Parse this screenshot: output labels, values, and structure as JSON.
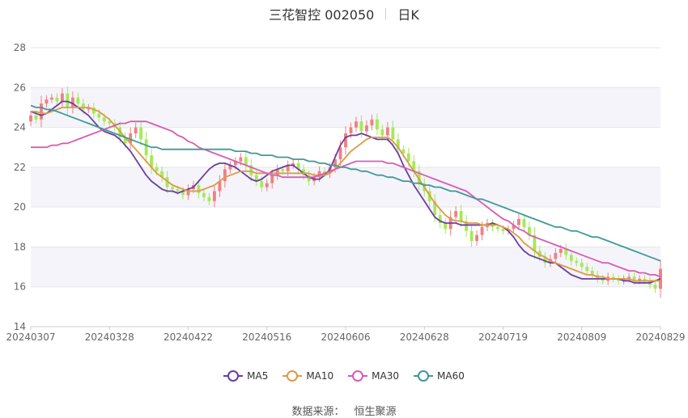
{
  "header": {
    "title": "三花智控 002050",
    "period": "日K"
  },
  "source": {
    "label": "数据来源：",
    "name": "恒生聚源"
  },
  "colors": {
    "up": "#f08080",
    "down": "#a6e85a",
    "MA5": "#6a3fa0",
    "MA10": "#dd9a47",
    "MA30": "#d85db2",
    "MA60": "#3f9a9a",
    "grid": "#e6e6e6",
    "band": "#f4f4fa",
    "axis": "#666666"
  },
  "chart_data": {
    "type": "candlestick",
    "title": "三花智控 002050",
    "ylim": [
      14,
      28
    ],
    "y_ticks": [
      14,
      16,
      18,
      20,
      22,
      24,
      26,
      28
    ],
    "x_ticks": [
      "20240307",
      "20240328",
      "20240422",
      "20240516",
      "20240606",
      "20240628",
      "20240719",
      "20240809",
      "20240829"
    ],
    "x_tick_index": [
      0,
      15,
      30,
      45,
      60,
      75,
      90,
      105,
      120
    ],
    "n_days": 121,
    "grid": true,
    "legend_position": "bottom",
    "close": [
      24.6,
      24.4,
      25.2,
      25.4,
      25.5,
      25.3,
      25.7,
      25.0,
      25.5,
      25.2,
      24.9,
      25.0,
      24.7,
      24.5,
      24.3,
      24.2,
      24.0,
      23.5,
      23.2,
      23.7,
      24.0,
      23.4,
      22.6,
      22.0,
      21.8,
      21.5,
      21.0,
      20.9,
      20.8,
      20.6,
      20.9,
      21.1,
      20.7,
      20.5,
      20.3,
      20.8,
      21.3,
      21.9,
      22.1,
      22.3,
      22.5,
      22.1,
      21.6,
      21.3,
      21.0,
      21.2,
      21.6,
      21.9,
      21.8,
      22.1,
      22.2,
      21.9,
      21.6,
      21.3,
      21.5,
      21.8,
      21.7,
      22.0,
      22.4,
      23.0,
      23.7,
      24.0,
      24.3,
      23.8,
      24.1,
      24.4,
      23.9,
      23.6,
      24.0,
      23.4,
      22.9,
      22.7,
      22.3,
      21.8,
      21.2,
      20.8,
      20.3,
      19.6,
      19.2,
      18.9,
      19.5,
      19.8,
      19.3,
      18.8,
      18.3,
      18.6,
      19.0,
      19.2,
      19.0,
      18.9,
      18.8,
      18.9,
      19.1,
      19.4,
      19.0,
      18.6,
      17.8,
      17.5,
      17.2,
      17.4,
      17.7,
      17.9,
      17.6,
      17.3,
      17.2,
      17.0,
      16.8,
      16.6,
      16.4,
      16.3,
      16.5,
      16.4,
      16.3,
      16.4,
      16.5,
      16.3,
      16.4,
      16.3,
      16.1,
      15.9,
      16.9
    ],
    "series": [
      {
        "name": "MA5",
        "values": [
          24.8,
          24.7,
          24.6,
          24.7,
          24.9,
          25.1,
          25.3,
          25.3,
          25.2,
          25.0,
          24.8,
          24.6,
          24.3,
          24.0,
          23.8,
          23.7,
          23.6,
          23.4,
          23.1,
          22.8,
          22.4,
          22.0,
          21.6,
          21.3,
          21.1,
          20.9,
          20.8,
          20.8,
          20.7,
          20.8,
          20.9,
          21.0,
          21.3,
          21.6,
          21.9,
          22.1,
          22.2,
          22.2,
          22.1,
          22.0,
          21.8,
          21.6,
          21.4,
          21.3,
          21.4,
          21.6,
          21.8,
          21.9,
          22.0,
          22.1,
          22.1,
          21.9,
          21.7,
          21.5,
          21.4,
          21.4,
          21.6,
          21.9,
          22.5,
          23.1,
          23.5,
          23.6,
          23.6,
          23.7,
          23.6,
          23.5,
          23.4,
          23.4,
          23.4,
          23.1,
          22.7,
          22.1,
          21.6,
          21.1,
          20.7,
          20.3,
          19.9,
          19.5,
          19.3,
          19.2,
          19.2,
          19.2,
          19.1,
          19.1,
          19.1,
          19.1,
          19.1,
          19.1,
          19.2,
          19.1,
          19.0,
          18.8,
          18.5,
          18.1,
          17.8,
          17.6,
          17.5,
          17.4,
          17.3,
          17.2,
          17.2,
          17.0,
          16.8,
          16.6,
          16.5,
          16.4,
          16.4,
          16.4,
          16.4,
          16.4,
          16.4,
          16.4,
          16.4,
          16.3,
          16.3,
          16.2,
          16.2,
          16.2,
          16.2,
          16.3,
          16.4
        ]
      },
      {
        "name": "MA10",
        "values": [
          24.8,
          24.8,
          24.7,
          24.7,
          24.8,
          24.9,
          25.0,
          25.0,
          25.0,
          25.0,
          25.0,
          25.0,
          24.9,
          24.8,
          24.6,
          24.4,
          24.1,
          23.8,
          23.5,
          23.2,
          22.9,
          22.6,
          22.3,
          22.0,
          21.7,
          21.5,
          21.3,
          21.1,
          21.0,
          20.9,
          20.8,
          20.8,
          20.8,
          20.9,
          21.0,
          21.1,
          21.3,
          21.5,
          21.6,
          21.7,
          21.8,
          21.8,
          21.8,
          21.7,
          21.7,
          21.7,
          21.7,
          21.7,
          21.7,
          21.7,
          21.7,
          21.7,
          21.7,
          21.7,
          21.6,
          21.6,
          21.6,
          21.7,
          21.9,
          22.2,
          22.5,
          22.8,
          23.0,
          23.2,
          23.4,
          23.5,
          23.5,
          23.5,
          23.5,
          23.3,
          23.0,
          22.6,
          22.2,
          21.8,
          21.4,
          21.0,
          20.6,
          20.2,
          19.9,
          19.6,
          19.4,
          19.3,
          19.3,
          19.2,
          19.2,
          19.2,
          19.1,
          19.1,
          19.1,
          19.1,
          19.0,
          18.9,
          18.7,
          18.5,
          18.2,
          18.0,
          17.8,
          17.6,
          17.5,
          17.3,
          17.2,
          17.1,
          17.0,
          16.9,
          16.8,
          16.7,
          16.6,
          16.6,
          16.5,
          16.5,
          16.4,
          16.4,
          16.4,
          16.4,
          16.4,
          16.3,
          16.3,
          16.3,
          16.3,
          16.3,
          16.3
        ]
      },
      {
        "name": "MA30",
        "values": [
          23.0,
          23.0,
          23.0,
          23.0,
          23.1,
          23.1,
          23.2,
          23.2,
          23.3,
          23.4,
          23.5,
          23.6,
          23.7,
          23.8,
          23.9,
          24.0,
          24.1,
          24.2,
          24.2,
          24.3,
          24.3,
          24.3,
          24.3,
          24.2,
          24.1,
          24.0,
          23.9,
          23.8,
          23.6,
          23.5,
          23.3,
          23.2,
          23.0,
          22.9,
          22.8,
          22.7,
          22.6,
          22.5,
          22.4,
          22.3,
          22.2,
          22.1,
          22.0,
          21.9,
          21.8,
          21.7,
          21.6,
          21.6,
          21.5,
          21.5,
          21.5,
          21.5,
          21.5,
          21.5,
          21.5,
          21.6,
          21.7,
          21.8,
          21.9,
          22.0,
          22.1,
          22.2,
          22.3,
          22.3,
          22.3,
          22.3,
          22.3,
          22.3,
          22.2,
          22.2,
          22.1,
          22.0,
          21.9,
          21.8,
          21.7,
          21.6,
          21.5,
          21.4,
          21.3,
          21.2,
          21.1,
          21.0,
          20.9,
          20.8,
          20.6,
          20.4,
          20.2,
          20.0,
          19.8,
          19.6,
          19.4,
          19.3,
          19.1,
          18.9,
          18.8,
          18.6,
          18.5,
          18.4,
          18.3,
          18.2,
          18.1,
          18.0,
          17.9,
          17.8,
          17.7,
          17.6,
          17.5,
          17.4,
          17.3,
          17.2,
          17.2,
          17.1,
          17.0,
          16.9,
          16.8,
          16.8,
          16.7,
          16.7,
          16.6,
          16.6,
          16.5
        ]
      },
      {
        "name": "MA60",
        "values": [
          25.1,
          25.0,
          25.0,
          24.9,
          24.9,
          24.8,
          24.7,
          24.6,
          24.5,
          24.4,
          24.3,
          24.2,
          24.1,
          24.0,
          23.9,
          23.8,
          23.7,
          23.6,
          23.5,
          23.4,
          23.3,
          23.2,
          23.1,
          23.0,
          23.0,
          22.9,
          22.9,
          22.9,
          22.9,
          22.9,
          22.9,
          22.9,
          22.9,
          22.9,
          22.9,
          22.9,
          22.9,
          22.9,
          22.9,
          22.8,
          22.8,
          22.8,
          22.7,
          22.7,
          22.6,
          22.6,
          22.6,
          22.5,
          22.5,
          22.5,
          22.4,
          22.4,
          22.4,
          22.3,
          22.3,
          22.2,
          22.2,
          22.1,
          22.1,
          22.0,
          22.0,
          21.9,
          21.9,
          21.8,
          21.8,
          21.7,
          21.6,
          21.6,
          21.5,
          21.5,
          21.4,
          21.3,
          21.3,
          21.2,
          21.2,
          21.1,
          21.1,
          21.0,
          21.0,
          20.9,
          20.8,
          20.8,
          20.7,
          20.6,
          20.5,
          20.4,
          20.4,
          20.3,
          20.2,
          20.1,
          20.0,
          19.9,
          19.8,
          19.7,
          19.6,
          19.5,
          19.4,
          19.3,
          19.2,
          19.1,
          19.0,
          19.0,
          18.9,
          18.8,
          18.8,
          18.7,
          18.6,
          18.5,
          18.5,
          18.4,
          18.3,
          18.2,
          18.1,
          18.0,
          17.9,
          17.8,
          17.7,
          17.6,
          17.5,
          17.4,
          17.3
        ]
      }
    ]
  },
  "legend": [
    {
      "name": "MA5",
      "color": "#6a3fa0"
    },
    {
      "name": "MA10",
      "color": "#dd9a47"
    },
    {
      "name": "MA30",
      "color": "#d85db2"
    },
    {
      "name": "MA60",
      "color": "#3f9a9a"
    }
  ]
}
